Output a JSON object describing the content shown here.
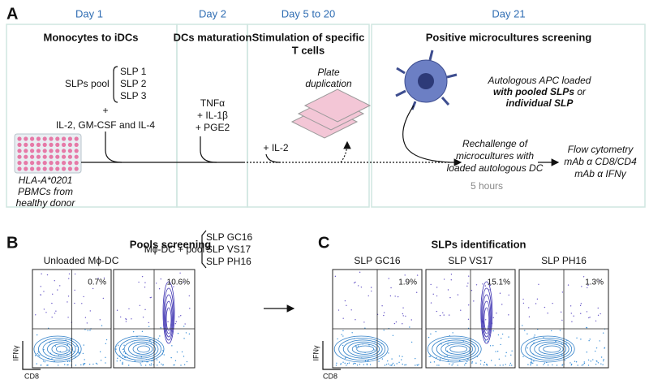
{
  "panel_a": {
    "label": "A",
    "days": [
      "Day 1",
      "Day 2",
      "Day 5 to 20",
      "Day 21"
    ],
    "box1": {
      "title": "Monocytes to iDCs",
      "pool": "SLPs pool",
      "slps": [
        "SLP 1",
        "SLP 2",
        "SLP 3"
      ],
      "plus": "+",
      "cytokines": "IL-2, GM-CSF and IL-4",
      "donor": [
        "HLA-A*0201",
        "PBMCs from",
        "healthy donor"
      ]
    },
    "box2": {
      "title": "DCs maturation",
      "items": [
        "TNFα",
        "+ IL-1β",
        "+ PGE2"
      ]
    },
    "box3": {
      "title": [
        "Stimulation of specific",
        "T cells"
      ],
      "il2": "+ IL-2",
      "plate": [
        "Plate",
        "duplication"
      ]
    },
    "box4": {
      "title": "Positive microcultures screening",
      "apc": [
        "Autologous APC loaded",
        "with pooled SLPs",
        "or",
        "individual SLP"
      ],
      "rechallenge": [
        "Rechallenge of",
        "microcultures with",
        "loaded autologous DC"
      ],
      "duration": "5 hours",
      "flow": [
        "Flow cytometry",
        "mAb α CD8/CD4",
        "mAb α IFNγ"
      ]
    }
  },
  "panel_b": {
    "label": "B",
    "title": "Pools screening",
    "unloaded": "Unloaded Mϕ-DC",
    "pool": "Mϕ-DC + pool",
    "slps": [
      "SLP GC16",
      "SLP VS17",
      "SLP PH16"
    ],
    "percents": [
      "0.7%",
      "10.6%"
    ],
    "y_axis": "IFNγ",
    "x_axis": "CD8"
  },
  "panel_c": {
    "label": "C",
    "title": "SLPs identification",
    "plots": [
      {
        "name": "SLP GC16",
        "percent": "1.9%"
      },
      {
        "name": "SLP VS17",
        "percent": "15.1%"
      },
      {
        "name": "SLP PH16",
        "percent": "1.3%"
      }
    ],
    "y_axis": "IFNγ",
    "x_axis": "CD8"
  }
}
